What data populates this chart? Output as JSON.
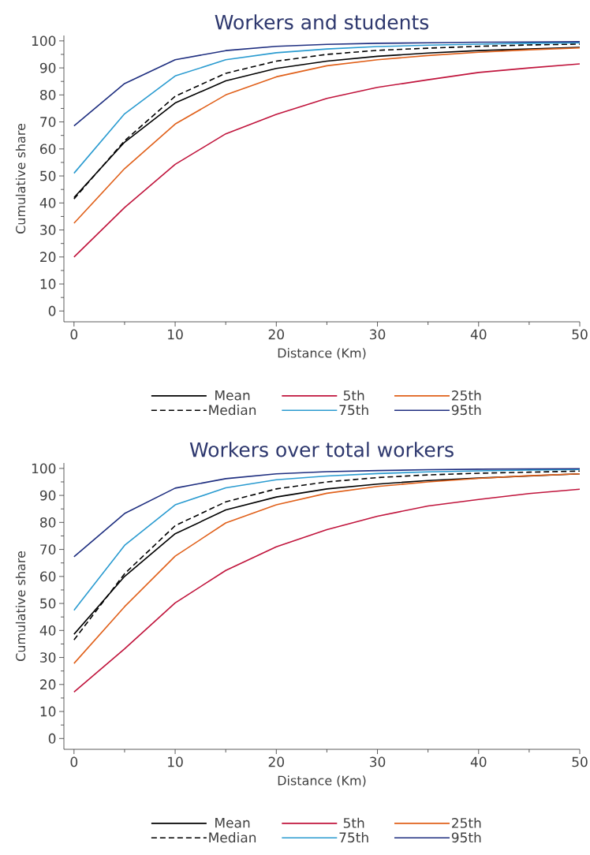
{
  "chart_data": [
    {
      "type": "line",
      "title": "Workers and students",
      "xlabel": "Distance (Km)",
      "ylabel": "Cumulative share",
      "x": [
        0,
        5,
        10,
        15,
        20,
        25,
        30,
        35,
        40,
        45,
        50
      ],
      "xlim": [
        -1,
        50
      ],
      "ylim": [
        -4,
        102
      ],
      "xticks": [
        0,
        10,
        20,
        30,
        40,
        50
      ],
      "yticks": [
        0,
        10,
        20,
        30,
        40,
        50,
        60,
        70,
        80,
        90,
        100
      ],
      "legend": "bottom",
      "series": [
        {
          "name": "Mean",
          "color": "#000000",
          "line_style": "solid",
          "values": [
            42,
            62.5,
            77,
            85.2,
            89.8,
            92.5,
            94.3,
            95.5,
            96.4,
            97,
            97.6
          ]
        },
        {
          "name": "5th",
          "color": "#c0143c",
          "line_style": "solid",
          "values": [
            20,
            38.3,
            54.3,
            65.6,
            72.8,
            78.7,
            82.8,
            85.6,
            88.3,
            90,
            91.5
          ]
        },
        {
          "name": "25th",
          "color": "#e0601a",
          "line_style": "solid",
          "values": [
            32.5,
            52.7,
            69.2,
            80,
            86.7,
            90.8,
            93,
            94.6,
            95.8,
            96.7,
            97.4
          ]
        },
        {
          "name": "Median",
          "color": "#000000",
          "line_style": "dashed",
          "values": [
            41.5,
            63,
            79.5,
            88,
            92.5,
            95,
            96.5,
            97.3,
            98,
            98.5,
            98.8
          ]
        },
        {
          "name": "75th",
          "color": "#2a9bd0",
          "line_style": "solid",
          "values": [
            51,
            73,
            87,
            93,
            95.6,
            97,
            97.9,
            98.4,
            98.8,
            99.1,
            99.3
          ]
        },
        {
          "name": "95th",
          "color": "#1f2f80",
          "line_style": "solid",
          "values": [
            68.5,
            84.2,
            93,
            96.4,
            98,
            98.7,
            99.1,
            99.3,
            99.5,
            99.6,
            99.7
          ]
        }
      ]
    },
    {
      "type": "line",
      "title": "Workers over total workers",
      "xlabel": "Distance (Km)",
      "ylabel": "Cumulative share",
      "x": [
        0,
        5,
        10,
        15,
        20,
        25,
        30,
        35,
        40,
        45,
        50
      ],
      "xlim": [
        -1,
        50
      ],
      "ylim": [
        -4,
        102
      ],
      "xticks": [
        0,
        10,
        20,
        30,
        40,
        50
      ],
      "yticks": [
        0,
        10,
        20,
        30,
        40,
        50,
        60,
        70,
        80,
        90,
        100
      ],
      "legend": "bottom",
      "series": [
        {
          "name": "Mean",
          "color": "#000000",
          "line_style": "solid",
          "values": [
            38.6,
            60,
            75.8,
            84.6,
            89.4,
            92.4,
            94.2,
            95.5,
            96.4,
            97.2,
            98
          ]
        },
        {
          "name": "5th",
          "color": "#c0143c",
          "line_style": "solid",
          "values": [
            17.2,
            33.2,
            50.2,
            62.2,
            71,
            77.3,
            82.3,
            86.1,
            88.5,
            90.7,
            92.3
          ]
        },
        {
          "name": "25th",
          "color": "#e0601a",
          "line_style": "solid",
          "values": [
            27.8,
            48.8,
            67.5,
            79.8,
            86.5,
            90.8,
            93.3,
            95,
            96.3,
            97.3,
            98
          ]
        },
        {
          "name": "Median",
          "color": "#000000",
          "line_style": "dashed",
          "values": [
            36.5,
            61,
            78.8,
            87.6,
            92.4,
            95,
            96.6,
            97.6,
            98.2,
            98.6,
            99
          ]
        },
        {
          "name": "75th",
          "color": "#2a9bd0",
          "line_style": "solid",
          "values": [
            47.5,
            71.5,
            86.5,
            92.8,
            95.8,
            97.2,
            98.1,
            98.7,
            99.1,
            99.4,
            99.6
          ]
        },
        {
          "name": "95th",
          "color": "#1f2f80",
          "line_style": "solid",
          "values": [
            67.3,
            83.3,
            92.7,
            96.2,
            98,
            98.8,
            99.2,
            99.5,
            99.7,
            99.8,
            99.9
          ]
        }
      ]
    }
  ]
}
